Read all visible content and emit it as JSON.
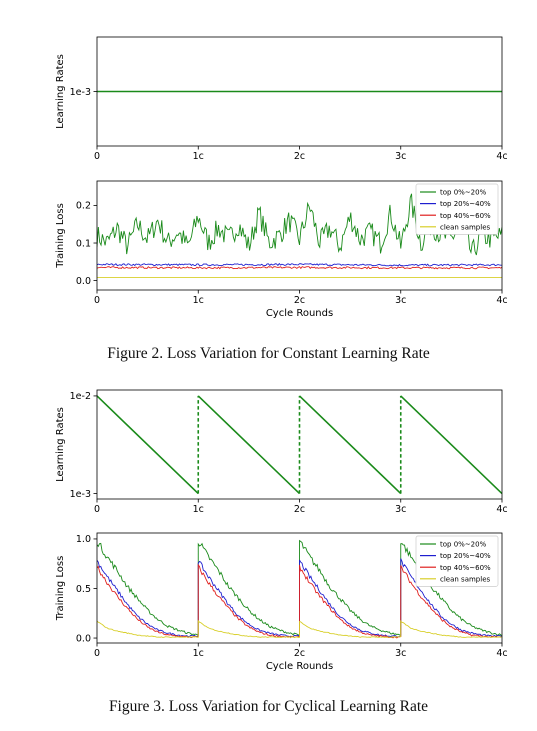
{
  "figure2": {
    "caption": "Figure 2. Loss Variation for Constant Learning Rate"
  },
  "figure3": {
    "caption": "Figure 3. Loss Variation for Cyclical Learning Rate"
  },
  "colors": {
    "top_0_20": "#1a8a1a",
    "top_20_40": "#1f1fcf",
    "top_40_60": "#e0201e",
    "clean": "#d8cf2a"
  },
  "chart_data": [
    {
      "id": "fig2-lr",
      "type": "line",
      "ylabel": "Learning Rates",
      "xlabel": "",
      "x_ticks": [
        "0",
        "1c",
        "2c",
        "3c",
        "4c"
      ],
      "y_ticks": [
        "1e-3"
      ],
      "xlim": [
        0,
        4
      ],
      "ylog": true,
      "ylim": [
        0.0005,
        0.002
      ],
      "grid": false,
      "series": [
        {
          "color": "#1a8a1a",
          "style": "solid",
          "x": [
            0,
            4
          ],
          "y": [
            0.001,
            0.001
          ]
        }
      ]
    },
    {
      "id": "fig2-loss",
      "type": "line",
      "ylabel": "Training Loss",
      "xlabel": "Cycle Rounds",
      "x_ticks": [
        "0",
        "1c",
        "2c",
        "3c",
        "4c"
      ],
      "y_ticks": [
        "0.0",
        "0.1",
        "0.2"
      ],
      "xlim": [
        0,
        4
      ],
      "ylim": [
        -0.025,
        0.265
      ],
      "legend_position": "top-right",
      "grid": false,
      "series": [
        {
          "name": "top 0%~20%",
          "color": "#1a8a1a",
          "x": [
            0,
            0.1,
            0.2,
            0.3,
            0.4,
            0.5,
            0.6,
            0.7,
            0.8,
            0.9,
            1.0,
            1.1,
            1.2,
            1.3,
            1.4,
            1.5,
            1.6,
            1.7,
            1.8,
            1.9,
            2.0,
            2.1,
            2.2,
            2.3,
            2.4,
            2.5,
            2.6,
            2.7,
            2.8,
            2.9,
            3.0,
            3.1,
            3.2,
            3.3,
            3.4,
            3.5,
            3.6,
            3.7,
            3.8,
            3.9,
            4.0
          ],
          "y": [
            0.12,
            0.1,
            0.14,
            0.09,
            0.15,
            0.11,
            0.16,
            0.1,
            0.13,
            0.09,
            0.17,
            0.1,
            0.14,
            0.11,
            0.15,
            0.09,
            0.18,
            0.1,
            0.12,
            0.16,
            0.11,
            0.2,
            0.1,
            0.14,
            0.09,
            0.17,
            0.11,
            0.13,
            0.1,
            0.18,
            0.09,
            0.21,
            0.1,
            0.15,
            0.12,
            0.11,
            0.16,
            0.07,
            0.12,
            0.11,
            0.12
          ]
        },
        {
          "name": "top 20%~40%",
          "color": "#1f1fcf",
          "x": [
            0,
            1,
            2,
            3,
            4
          ],
          "y": [
            0.043,
            0.042,
            0.043,
            0.041,
            0.042
          ]
        },
        {
          "name": "top 40%~60%",
          "color": "#e0201e",
          "x": [
            0,
            1,
            2,
            3,
            4
          ],
          "y": [
            0.035,
            0.034,
            0.035,
            0.034,
            0.034
          ]
        },
        {
          "name": "clean samples",
          "color": "#d8cf2a",
          "x": [
            0,
            4
          ],
          "y": [
            0.008,
            0.008
          ]
        }
      ]
    },
    {
      "id": "fig3-lr",
      "type": "line",
      "ylabel": "Learning Rates",
      "xlabel": "",
      "x_ticks": [
        "0",
        "1c",
        "2c",
        "3c",
        "4c"
      ],
      "y_ticks": [
        "1e-2",
        "1e-3"
      ],
      "xlim": [
        0,
        4
      ],
      "ylog": true,
      "ylim": [
        0.00088,
        0.0115
      ],
      "grid": false,
      "series": [
        {
          "color": "#1a8a1a",
          "style": "solid",
          "x": [
            0,
            1
          ],
          "y": [
            0.01,
            0.001
          ]
        },
        {
          "color": "#1a8a1a",
          "style": "dashed",
          "x": [
            1,
            1
          ],
          "y": [
            0.001,
            0.01
          ]
        },
        {
          "color": "#1a8a1a",
          "style": "solid",
          "x": [
            1,
            2
          ],
          "y": [
            0.01,
            0.001
          ]
        },
        {
          "color": "#1a8a1a",
          "style": "dashed",
          "x": [
            2,
            2
          ],
          "y": [
            0.001,
            0.01
          ]
        },
        {
          "color": "#1a8a1a",
          "style": "solid",
          "x": [
            2,
            3
          ],
          "y": [
            0.01,
            0.001
          ]
        },
        {
          "color": "#1a8a1a",
          "style": "dashed",
          "x": [
            3,
            3
          ],
          "y": [
            0.001,
            0.01
          ]
        },
        {
          "color": "#1a8a1a",
          "style": "solid",
          "x": [
            3,
            4
          ],
          "y": [
            0.01,
            0.001
          ]
        }
      ]
    },
    {
      "id": "fig3-loss",
      "type": "line",
      "ylabel": "Training Loss",
      "xlabel": "Cycle Rounds",
      "x_ticks": [
        "0",
        "1c",
        "2c",
        "3c",
        "4c"
      ],
      "y_ticks": [
        "0.0",
        "0.5",
        "1.0"
      ],
      "xlim": [
        0,
        4
      ],
      "ylim": [
        -0.05,
        1.06
      ],
      "legend_position": "top-right",
      "grid": false,
      "series": [
        {
          "name": "top 0%~20%",
          "color": "#1a8a1a",
          "cycle_x": [
            0,
            0.1,
            0.2,
            0.3,
            0.4,
            0.5,
            0.6,
            0.7,
            0.8,
            0.9,
            1.0
          ],
          "cycle_y": [
            0.98,
            0.82,
            0.68,
            0.52,
            0.4,
            0.28,
            0.19,
            0.12,
            0.08,
            0.05,
            0.03
          ]
        },
        {
          "name": "top 20%~40%",
          "color": "#1f1fcf",
          "cycle_x": [
            0,
            0.1,
            0.2,
            0.3,
            0.4,
            0.5,
            0.6,
            0.7,
            0.8,
            0.9,
            1.0
          ],
          "cycle_y": [
            0.78,
            0.62,
            0.48,
            0.34,
            0.22,
            0.14,
            0.08,
            0.05,
            0.03,
            0.02,
            0.02
          ]
        },
        {
          "name": "top 40%~60%",
          "color": "#e0201e",
          "cycle_x": [
            0,
            0.1,
            0.2,
            0.3,
            0.4,
            0.5,
            0.6,
            0.7,
            0.8,
            0.9,
            1.0
          ],
          "cycle_y": [
            0.72,
            0.56,
            0.42,
            0.3,
            0.19,
            0.11,
            0.06,
            0.03,
            0.02,
            0.01,
            0.01
          ]
        },
        {
          "name": "clean samples",
          "color": "#d8cf2a",
          "cycle_x": [
            0,
            0.1,
            0.2,
            0.3,
            0.4,
            0.5,
            0.6,
            0.7,
            0.8,
            0.9,
            1.0
          ],
          "cycle_y": [
            0.17,
            0.1,
            0.07,
            0.05,
            0.03,
            0.02,
            0.01,
            0.01,
            0.01,
            0.01,
            0.01
          ]
        }
      ]
    }
  ]
}
